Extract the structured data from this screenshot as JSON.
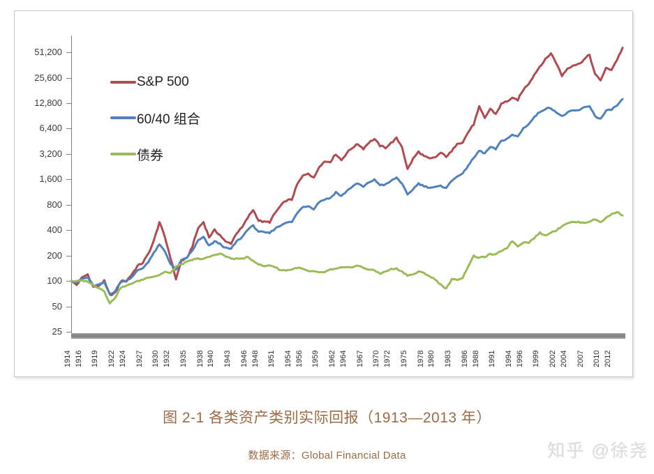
{
  "page": {
    "background": "#ffffff"
  },
  "caption": {
    "text": "图 2-1 各类资产类别实际回报（1913—2013 年）",
    "color": "#9c6a44"
  },
  "source": {
    "text": "数据来源：Global Financial Data",
    "color": "#9c6a44"
  },
  "watermark": {
    "text": "知乎 @徐尧",
    "color": "#dcdcdc"
  },
  "chart_data": {
    "type": "line",
    "title": "",
    "xlabel": "",
    "ylabel": "",
    "y_scale": "log2",
    "grid": false,
    "legend_position": "inside-top-left",
    "axis_color": "#808080",
    "x_start": 1913,
    "x_end": 2013,
    "ylim": [
      25,
      51200
    ],
    "y_ticks": [
      25,
      50,
      100,
      200,
      400,
      800,
      1600,
      3200,
      6400,
      12800,
      25600,
      51200
    ],
    "y_tick_labels": [
      "25",
      "50",
      "100",
      "200",
      "400",
      "800",
      "1,600",
      "3,200",
      "6,400",
      "12,800",
      "25,600",
      "51,200"
    ],
    "x_tick_years": [
      1914,
      1916,
      1919,
      1922,
      1924,
      1927,
      1930,
      1932,
      1935,
      1938,
      1940,
      1943,
      1946,
      1948,
      1951,
      1954,
      1956,
      1959,
      1962,
      1964,
      1967,
      1970,
      1972,
      1975,
      1978,
      1980,
      1983,
      1986,
      1988,
      1991,
      1994,
      1996,
      1999,
      2002,
      2004,
      2007,
      2010,
      2012
    ],
    "x_tick_labels": [
      "1914",
      "1916",
      "1919",
      "1922",
      "1924",
      "1927",
      "1930",
      "1932",
      "1935",
      "1938",
      "1940",
      "1943",
      "1946",
      "1948",
      "1951",
      "1954",
      "1956",
      "1959",
      "1962",
      "1964",
      "1967",
      "1970",
      "1972",
      "1975",
      "1978",
      "1980",
      "1983",
      "1986",
      "1988",
      "1991",
      "1994",
      "1996",
      "1999",
      "2002",
      "2004",
      "2007",
      "2010",
      "2012"
    ],
    "series": [
      {
        "name": "S&P 500",
        "color": "#b04a50",
        "start_value_1913": 100,
        "values": [
          100,
          90,
          110,
          120,
          85,
          88,
          100,
          68,
          72,
          100,
          100,
          120,
          150,
          165,
          210,
          300,
          500,
          330,
          190,
          105,
          175,
          185,
          260,
          420,
          500,
          330,
          400,
          350,
          290,
          280,
          370,
          430,
          560,
          700,
          520,
          500,
          500,
          640,
          780,
          900,
          920,
          1400,
          1750,
          1900,
          1650,
          2300,
          2600,
          2600,
          3200,
          2700,
          3300,
          3800,
          4200,
          3700,
          4400,
          4800,
          4000,
          3800,
          4300,
          4900,
          3900,
          2100,
          2800,
          3400,
          3000,
          2800,
          2900,
          3300,
          3000,
          3400,
          4300,
          4400,
          5800,
          7200,
          11500,
          8500,
          11000,
          9500,
          12500,
          13500,
          14500,
          14000,
          18500,
          22000,
          28000,
          35000,
          42000,
          50000,
          38000,
          27000,
          33000,
          36000,
          37000,
          42000,
          48000,
          28000,
          24000,
          33000,
          32000,
          42000,
          58000
        ]
      },
      {
        "name": "60/40 组合",
        "color": "#4f81bd",
        "start_value_1913": 100,
        "values": [
          100,
          96,
          106,
          110,
          88,
          90,
          96,
          70,
          76,
          98,
          100,
          112,
          132,
          142,
          170,
          215,
          270,
          225,
          160,
          135,
          175,
          190,
          230,
          300,
          330,
          260,
          295,
          275,
          245,
          240,
          295,
          330,
          410,
          450,
          385,
          375,
          370,
          420,
          455,
          500,
          495,
          640,
          750,
          775,
          715,
          870,
          930,
          960,
          1130,
          1010,
          1170,
          1320,
          1430,
          1300,
          1480,
          1580,
          1380,
          1380,
          1530,
          1680,
          1430,
          1040,
          1230,
          1430,
          1330,
          1280,
          1290,
          1330,
          1280,
          1520,
          1760,
          1850,
          2350,
          2850,
          3500,
          3250,
          3850,
          3650,
          4550,
          4850,
          5350,
          5150,
          6450,
          7250,
          8750,
          10100,
          11000,
          11200,
          10000,
          8900,
          9900,
          10400,
          10500,
          11300,
          11900,
          9000,
          8300,
          10300,
          10800,
          12000,
          14300
        ]
      },
      {
        "name": "债券",
        "color": "#9bbb59",
        "start_value_1913": 100,
        "values": [
          100,
          99,
          101,
          99,
          89,
          83,
          76,
          54,
          64,
          84,
          87,
          94,
          99,
          104,
          111,
          113,
          118,
          129,
          123,
          148,
          158,
          168,
          178,
          184,
          183,
          193,
          203,
          212,
          196,
          184,
          184,
          184,
          191,
          174,
          158,
          149,
          154,
          146,
          134,
          134,
          137,
          144,
          139,
          130,
          129,
          127,
          126,
          137,
          139,
          144,
          144,
          147,
          152,
          143,
          137,
          133,
          123,
          129,
          138,
          140,
          129,
          117,
          119,
          129,
          124,
          114,
          104,
          91,
          81,
          104,
          104,
          109,
          150,
          198,
          188,
          193,
          208,
          205,
          228,
          246,
          298,
          258,
          288,
          286,
          325,
          372,
          345,
          378,
          398,
          448,
          488,
          498,
          498,
          488,
          508,
          538,
          498,
          558,
          618,
          658,
          598
        ]
      }
    ]
  }
}
